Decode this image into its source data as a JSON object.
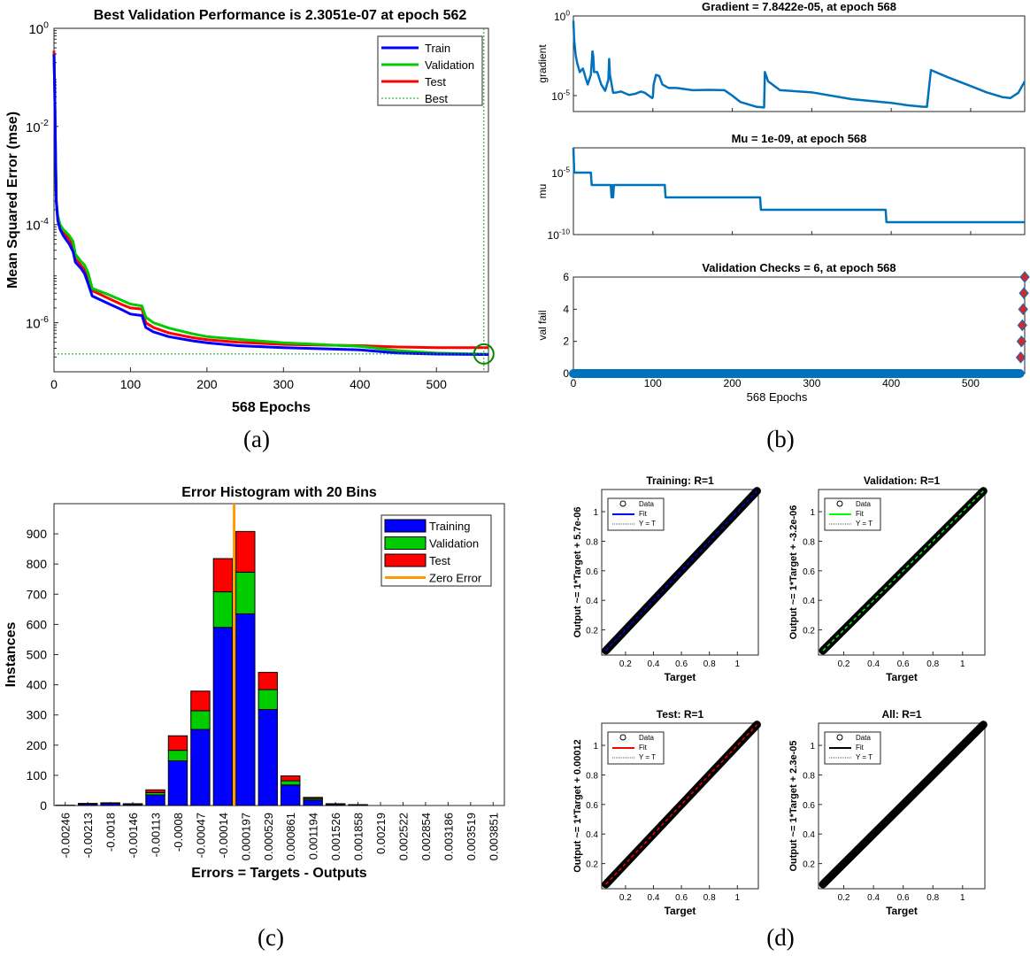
{
  "chart_data": [
    {
      "id": "a",
      "type": "line",
      "panel_label": "(a)",
      "title": "Best Validation Performance is 2.3051e-07 at epoch 562",
      "xlabel": "568 Epochs",
      "ylabel": "Mean Squared Error  (mse)",
      "xscale": "linear",
      "yscale": "log",
      "xlim": [
        0,
        568
      ],
      "ylim": [
        1e-07,
        1
      ],
      "xticks": [
        0,
        100,
        200,
        300,
        400,
        500
      ],
      "yticks": [
        {
          "value": 1e-06,
          "label": "10",
          "exp": "-6"
        },
        {
          "value": 0.0001,
          "label": "10",
          "exp": "-4"
        },
        {
          "value": 0.01,
          "label": "10",
          "exp": "-2"
        },
        {
          "value": 1,
          "label": "10",
          "exp": "0"
        }
      ],
      "legend": {
        "location": "top-right",
        "entries": [
          "Train",
          "Validation",
          "Test",
          "Best"
        ]
      },
      "best": {
        "epoch": 562,
        "value": 2.3051e-07
      },
      "series": [
        {
          "name": "Train",
          "color": "#0000ff",
          "x": [
            0,
            1,
            2,
            3,
            5,
            8,
            12,
            20,
            25,
            28,
            35,
            40,
            45,
            50,
            70,
            90,
            100,
            115,
            120,
            130,
            150,
            180,
            200,
            240,
            300,
            400,
            450,
            500,
            562,
            568
          ],
          "y": [
            0.3,
            0.05,
            0.003,
            0.0003,
            0.00012,
            8e-05,
            6e-05,
            4e-05,
            2.8e-05,
            1.7e-05,
            1.3e-05,
            1e-05,
            6e-06,
            3.5e-06,
            2.5e-06,
            1.8e-06,
            1.5e-06,
            1.4e-06,
            8e-07,
            6.5e-07,
            5.2e-07,
            4.3e-07,
            3.9e-07,
            3.4e-07,
            3.1e-07,
            2.8e-07,
            2.4e-07,
            2.3e-07,
            2.25e-07,
            2.25e-07
          ]
        },
        {
          "name": "Validation",
          "color": "#00cc00",
          "x": [
            0,
            1,
            2,
            3,
            5,
            8,
            12,
            20,
            25,
            28,
            35,
            40,
            45,
            50,
            70,
            90,
            100,
            115,
            120,
            130,
            150,
            180,
            200,
            240,
            300,
            400,
            450,
            500,
            562,
            568
          ],
          "y": [
            0.3,
            0.05,
            0.003,
            0.0003,
            0.00015,
            0.0001,
            8e-05,
            6e-05,
            4.5e-05,
            2.5e-05,
            1.8e-05,
            1.5e-05,
            1e-05,
            5e-06,
            3.8e-06,
            2.8e-06,
            2.4e-06,
            2.2e-06,
            1.3e-06,
            1e-06,
            7.8e-07,
            6e-07,
            5.2e-07,
            4.6e-07,
            3.9e-07,
            3.3e-07,
            2.7e-07,
            2.4e-07,
            2.3e-07,
            2.3e-07
          ]
        },
        {
          "name": "Test",
          "color": "#ff0000",
          "x": [
            0,
            1,
            2,
            3,
            5,
            8,
            12,
            20,
            25,
            28,
            35,
            40,
            45,
            50,
            70,
            90,
            100,
            115,
            120,
            130,
            150,
            180,
            200,
            240,
            300,
            400,
            450,
            500,
            562,
            568
          ],
          "y": [
            0.35,
            0.05,
            0.003,
            0.0003,
            0.00013,
            9e-05,
            7e-05,
            5e-05,
            3.3e-05,
            2e-05,
            1.5e-05,
            1.2e-05,
            7.5e-06,
            4.5e-06,
            3.2e-06,
            2.3e-06,
            2e-06,
            1.9e-06,
            1e-06,
            8e-07,
            6.2e-07,
            5e-07,
            4.5e-07,
            4e-07,
            3.6e-07,
            3.4e-07,
            3.2e-07,
            3.1e-07,
            3.1e-07,
            3.1e-07
          ]
        }
      ]
    },
    {
      "id": "b1",
      "type": "line",
      "title": "Gradient = 7.8422e-05, at epoch 568",
      "ylabel": "gradient",
      "xscale": "linear",
      "yscale": "log",
      "xlim": [
        0,
        568
      ],
      "ylim": [
        1e-06,
        1
      ],
      "yticks": [
        {
          "value": 1e-05,
          "label": "10",
          "exp": "-5"
        },
        {
          "value": 1,
          "label": "10",
          "exp": "0"
        }
      ],
      "series": [
        {
          "name": "gradient",
          "color": "#0072bd",
          "x": [
            0,
            1,
            3,
            5,
            8,
            12,
            15,
            18,
            22,
            24,
            25,
            26,
            30,
            35,
            40,
            44,
            45,
            46,
            50,
            55,
            60,
            65,
            70,
            78,
            85,
            90,
            99,
            100,
            101,
            104,
            108,
            112,
            120,
            130,
            150,
            170,
            190,
            200,
            210,
            230,
            240,
            241,
            245,
            260,
            300,
            350,
            400,
            420,
            440,
            445,
            450,
            470,
            500,
            520,
            540,
            550,
            560,
            568
          ],
          "y": [
            0.5,
            0.03,
            0.003,
            0.001,
            0.0003,
            0.0005,
            0.00015,
            5e-05,
            0.0002,
            0.006,
            0.003,
            0.0003,
            0.0003,
            5e-05,
            2e-05,
            0.0001,
            0.002,
            0.0002,
            1.5e-05,
            1.6e-05,
            1.8e-05,
            1.4e-05,
            1.1e-05,
            1.3e-05,
            1.8e-05,
            1.5e-05,
            7e-06,
            8e-06,
            5e-05,
            0.0002,
            0.00017,
            5e-05,
            3e-05,
            3e-05,
            2.2e-05,
            2.3e-05,
            2.2e-05,
            1e-05,
            4e-06,
            2e-06,
            1.8e-06,
            0.0003,
            8e-05,
            2.2e-05,
            1.6e-05,
            6e-06,
            3.5e-06,
            2.5e-06,
            2e-06,
            2e-06,
            0.0004,
            0.00015,
            4e-05,
            1.6e-05,
            8e-06,
            7e-06,
            1.5e-05,
            7.8e-05
          ]
        }
      ]
    },
    {
      "id": "b2",
      "type": "line",
      "title": "Mu = 1e-09, at epoch 568",
      "ylabel": "mu",
      "xscale": "linear",
      "yscale": "log",
      "xlim": [
        0,
        568
      ],
      "ylim": [
        1e-10,
        0.001
      ],
      "yticks": [
        {
          "value": 1e-10,
          "label": "10",
          "exp": "-10"
        },
        {
          "value": 1e-05,
          "label": "10",
          "exp": "-5"
        }
      ],
      "series": [
        {
          "name": "mu",
          "color": "#0072bd",
          "x": [
            0,
            1,
            2,
            22,
            23,
            47,
            48,
            49,
            50,
            51,
            52,
            115,
            116,
            235,
            236,
            393,
            394,
            568
          ],
          "y": [
            0.001,
            1e-05,
            1e-05,
            1e-05,
            1e-06,
            1e-06,
            1e-07,
            1e-06,
            1e-07,
            1e-06,
            1e-06,
            1e-06,
            1e-07,
            1e-07,
            1e-08,
            1e-08,
            1e-09,
            1e-09
          ]
        }
      ]
    },
    {
      "id": "b3",
      "type": "scatter",
      "panel_label": "(b)",
      "title": "Validation Checks = 6, at epoch 568",
      "xlabel": "568 Epochs",
      "ylabel": "val fail",
      "xlim": [
        0,
        568
      ],
      "ylim": [
        0,
        6
      ],
      "xticks": [
        0,
        100,
        200,
        300,
        400,
        500
      ],
      "yticks": [
        0,
        2,
        4,
        6
      ],
      "series": [
        {
          "name": "val fail",
          "color": "#0072bd",
          "x_range": [
            0,
            562
          ],
          "value": 0
        },
        {
          "name": "val fail rising",
          "color": "#d62728",
          "x": [
            563,
            564,
            565,
            566,
            567,
            568
          ],
          "y": [
            1,
            2,
            3,
            4,
            5,
            6
          ]
        }
      ]
    },
    {
      "id": "c",
      "type": "bar",
      "panel_label": "(c)",
      "title": "Error Histogram with 20 Bins",
      "xlabel": "Errors = Targets - Outputs",
      "ylabel": "Instances",
      "ylim": [
        0,
        1000
      ],
      "yticks": [
        0,
        100,
        200,
        300,
        400,
        500,
        600,
        700,
        800,
        900
      ],
      "categories": [
        "-0.00246",
        "-0.00213",
        "-0.0018",
        "-0.00146",
        "-0.00113",
        "-0.0008",
        "-0.00047",
        "-0.00014",
        "0.000197",
        "0.000529",
        "0.000861",
        "0.001194",
        "0.001526",
        "0.001858",
        "0.00219",
        "0.002522",
        "0.002854",
        "0.003186",
        "0.003519",
        "0.003851"
      ],
      "stacked": true,
      "series": [
        {
          "name": "Training",
          "color": "#0000ff",
          "values": [
            1,
            5,
            7,
            4,
            35,
            148,
            252,
            590,
            635,
            318,
            68,
            18,
            4,
            2,
            0,
            0,
            0,
            0,
            0,
            0
          ]
        },
        {
          "name": "Validation",
          "color": "#00cc00",
          "values": [
            0,
            1,
            1,
            1,
            8,
            35,
            62,
            118,
            138,
            66,
            14,
            5,
            1,
            0,
            0,
            0,
            0,
            0,
            0,
            0
          ]
        },
        {
          "name": "Test",
          "color": "#ff0000",
          "values": [
            0,
            1,
            1,
            1,
            9,
            48,
            65,
            110,
            135,
            57,
            16,
            4,
            1,
            1,
            0,
            0,
            0,
            0,
            0,
            0
          ]
        }
      ],
      "zero_error": {
        "name": "Zero Error",
        "color": "#ff9900",
        "between": [
          7,
          8
        ]
      },
      "legend": {
        "location": "top-right",
        "entries": [
          "Training",
          "Validation",
          "Test",
          "Zero Error"
        ]
      }
    },
    {
      "id": "d1",
      "type": "scatter",
      "title": "Training: R=1",
      "xlabel": "Target",
      "ylabel": "Output ~= 1*Target + 5.7e-06",
      "xlim": [
        0.03,
        1.15
      ],
      "ylim": [
        0.03,
        1.15
      ],
      "xticks": [
        0.2,
        0.4,
        0.6,
        0.8,
        1
      ],
      "yticks": [
        0.2,
        0.4,
        0.6,
        0.8,
        1
      ],
      "fit_color": "#0000ff",
      "fit_slope": 1,
      "fit_intercept": 5.7e-06,
      "legend": {
        "location": "top-left",
        "entries": [
          "Data",
          "Fit",
          "Y = T"
        ]
      }
    },
    {
      "id": "d2",
      "type": "scatter",
      "title": "Validation: R=1",
      "xlabel": "Target",
      "ylabel": "Output ~= 1*Target + -3.2e-06",
      "xlim": [
        0.03,
        1.15
      ],
      "ylim": [
        0.03,
        1.15
      ],
      "xticks": [
        0.2,
        0.4,
        0.6,
        0.8,
        1
      ],
      "yticks": [
        0.2,
        0.4,
        0.6,
        0.8,
        1
      ],
      "fit_color": "#00ff00",
      "fit_slope": 1,
      "fit_intercept": -3.2e-06,
      "legend": {
        "location": "top-left",
        "entries": [
          "Data",
          "Fit",
          "Y = T"
        ]
      }
    },
    {
      "id": "d3",
      "type": "scatter",
      "title": "Test: R=1",
      "xlabel": "Target",
      "ylabel": "Output ~= 1*Target + 0.00012",
      "xlim": [
        0.03,
        1.15
      ],
      "ylim": [
        0.03,
        1.15
      ],
      "xticks": [
        0.2,
        0.4,
        0.6,
        0.8,
        1
      ],
      "yticks": [
        0.2,
        0.4,
        0.6,
        0.8,
        1
      ],
      "fit_color": "#ff0000",
      "fit_slope": 1,
      "fit_intercept": 0.00012,
      "legend": {
        "location": "top-left",
        "entries": [
          "Data",
          "Fit",
          "Y = T"
        ]
      }
    },
    {
      "id": "d4",
      "type": "scatter",
      "title": "All: R=1",
      "panel_label": "(d)",
      "xlabel": "Target",
      "ylabel": "Output ~= 1*Target + 2.3e-05",
      "xlim": [
        0.03,
        1.15
      ],
      "ylim": [
        0.03,
        1.15
      ],
      "xticks": [
        0.2,
        0.4,
        0.6,
        0.8,
        1
      ],
      "yticks": [
        0.2,
        0.4,
        0.6,
        0.8,
        1
      ],
      "fit_color": "#000000",
      "fit_slope": 1,
      "fit_intercept": 2.3e-05,
      "legend": {
        "location": "top-left",
        "entries": [
          "Data",
          "Fit",
          "Y = T"
        ]
      }
    }
  ]
}
